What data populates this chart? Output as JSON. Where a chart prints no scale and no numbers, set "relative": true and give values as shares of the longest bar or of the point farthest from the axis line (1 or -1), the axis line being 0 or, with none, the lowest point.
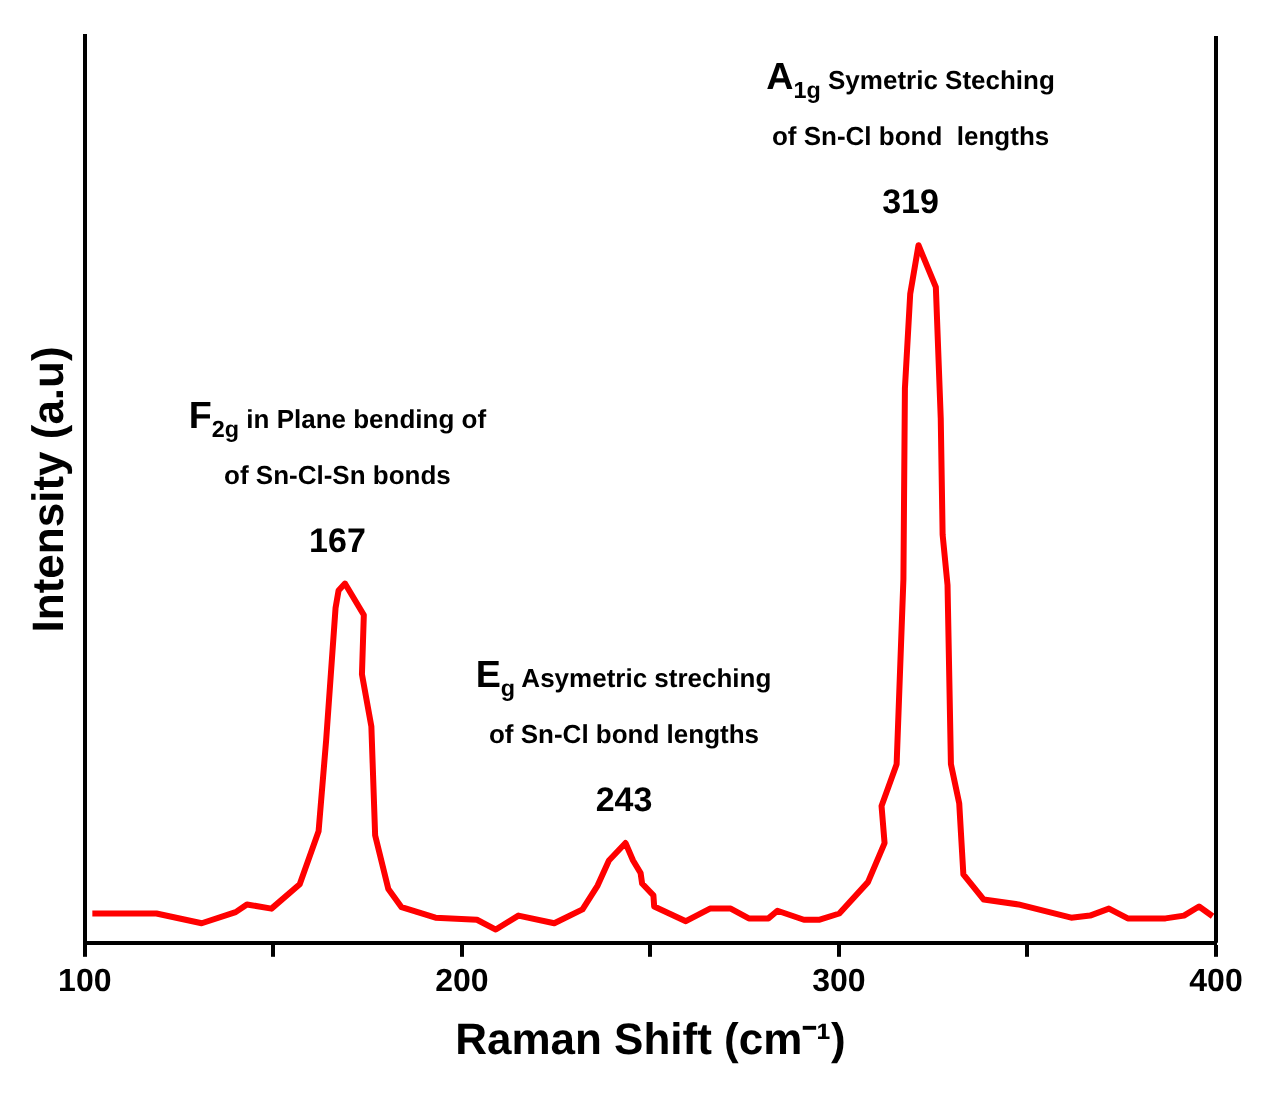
{
  "chart_data": {
    "type": "line",
    "xlabel": "Raman Shift (cm⁻¹)",
    "ylabel": "Intensity (a.u)",
    "relative": true,
    "grid": false,
    "legend": false,
    "marker": "none",
    "line_style": "solid",
    "xlim": [
      100,
      400
    ],
    "xticks": [
      100,
      {
        "value": 150,
        "label": null
      },
      200,
      {
        "value": 250,
        "label": null
      },
      300,
      {
        "value": 350,
        "label": null
      },
      400
    ],
    "series": [
      {
        "color": "#ff0000",
        "x": [
          102,
          119,
          131,
          140,
          143,
          149.5,
          157,
          162,
          164,
          166.5,
          167.3,
          169,
          174,
          173.5,
          176,
          177,
          180.5,
          184,
          193,
          204,
          209,
          215,
          224.5,
          232,
          236,
          239,
          243.4,
          245.4,
          247.4,
          247.8,
          250.8,
          251,
          259.4,
          265.8,
          271.3,
          276.1,
          281.3,
          283.7,
          290.7,
          294.7,
          300.1,
          307.7,
          312.1,
          311.3,
          315.3,
          317.1,
          317.5,
          318.9,
          321.1,
          325.7,
          327,
          327.5,
          328.8,
          329.7,
          331.9,
          333,
          338.4,
          347.6,
          361.6,
          366.6,
          371.6,
          376.6,
          386.6,
          391.5,
          395.5,
          399.1
        ],
        "values": [
          0.042,
          0.042,
          0.028,
          0.044,
          0.055,
          0.049,
          0.084,
          0.16,
          0.29,
          0.48,
          0.505,
          0.515,
          0.47,
          0.385,
          0.31,
          0.154,
          0.077,
          0.051,
          0.036,
          0.033,
          0.019,
          0.039,
          0.028,
          0.048,
          0.082,
          0.118,
          0.143,
          0.118,
          0.1,
          0.085,
          0.068,
          0.052,
          0.031,
          0.049,
          0.049,
          0.035,
          0.035,
          0.046,
          0.033,
          0.033,
          0.042,
          0.087,
          0.143,
          0.196,
          0.256,
          0.521,
          0.795,
          0.93,
          1,
          0.94,
          0.752,
          0.585,
          0.513,
          0.256,
          0.2,
          0.098,
          0.062,
          0.055,
          0.036,
          0.039,
          0.049,
          0.035,
          0.035,
          0.039,
          0.052,
          0.038
        ]
      }
    ],
    "annotations": [
      "F$_{2g}$ in Plane bending of",
      "of Sn-Cl-Sn bonds",
      {
        "text": "167",
        "x": 167,
        "y": 0.515
      },
      "E$_{g}$ Asymetric streching",
      "of Sn-Cl bond lengths",
      {
        "text": "243",
        "x": 243,
        "y": 0.143
      },
      "A$_{1g}$ Symetric Steching",
      "of Sn-Cl bond  lengths",
      {
        "text": "319",
        "x": 319,
        "y": 1
      }
    ]
  }
}
